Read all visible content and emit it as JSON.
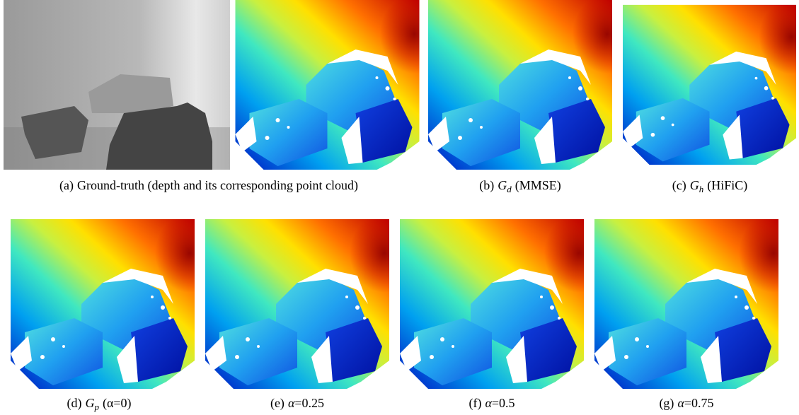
{
  "figure": {
    "captions": [
      {
        "label": "(a)",
        "text": "Ground-truth (depth and its corresponding point cloud)"
      },
      {
        "label": "(b)",
        "symbol": "G",
        "sub": "d",
        "text": "(MMSE)"
      },
      {
        "label": "(c)",
        "symbol": "G",
        "sub": "h",
        "text": "(HiFiC)"
      },
      {
        "label": "(d)",
        "symbol": "G",
        "sub": "p",
        "text": "(α=0)"
      },
      {
        "label": "(e)",
        "symbol": "α",
        "text": "=0.25"
      },
      {
        "label": "(f)",
        "symbol": "α",
        "text": "=0.5"
      },
      {
        "label": "(g)",
        "symbol": "α",
        "text": "=0.75"
      }
    ]
  }
}
